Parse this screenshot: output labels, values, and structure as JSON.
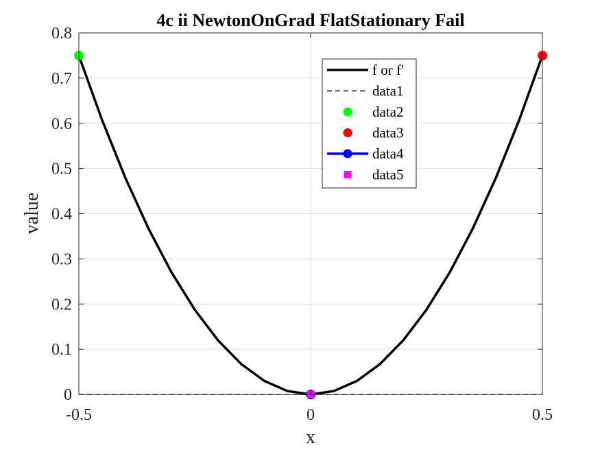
{
  "chart_data": {
    "type": "line",
    "title": "4c ii NewtonOnGrad FlatStationary Fail",
    "xlabel": "x",
    "ylabel": "value",
    "xlim": [
      -0.5,
      0.5
    ],
    "ylim": [
      0,
      0.8
    ],
    "xticks": [
      -0.5,
      0,
      0.5
    ],
    "xtick_labels": [
      "-0.5",
      "0",
      "0.5"
    ],
    "yticks": [
      0,
      0.1,
      0.2,
      0.3,
      0.4,
      0.5,
      0.6,
      0.7,
      0.8
    ],
    "ytick_labels": [
      "0",
      "0.1",
      "0.2",
      "0.3",
      "0.4",
      "0.5",
      "0.6",
      "0.7",
      "0.8"
    ],
    "grid": true,
    "legend_position": "top-center",
    "series": [
      {
        "name": "f or f'",
        "style": "solid-thick",
        "color": "#000000",
        "x": [
          -0.5,
          -0.45,
          -0.4,
          -0.35,
          -0.3,
          -0.25,
          -0.2,
          -0.15,
          -0.1,
          -0.05,
          0,
          0.05,
          0.1,
          0.15,
          0.2,
          0.25,
          0.3,
          0.35,
          0.4,
          0.45,
          0.5
        ],
        "y": [
          0.75,
          0.6075,
          0.48,
          0.3675,
          0.27,
          0.1875,
          0.12,
          0.0675,
          0.03,
          0.0075,
          0,
          0.0075,
          0.03,
          0.0675,
          0.12,
          0.1875,
          0.27,
          0.3675,
          0.48,
          0.6075,
          0.75
        ]
      },
      {
        "name": "data1",
        "style": "dashed",
        "color": "#000000",
        "x": [
          -0.5,
          0.5
        ],
        "y": [
          0,
          0
        ]
      },
      {
        "name": "data2",
        "style": "marker-circle",
        "color": "#00ff00",
        "x": [
          -0.5
        ],
        "y": [
          0.75
        ]
      },
      {
        "name": "data3",
        "style": "marker-circle",
        "color": "#ff0000",
        "x": [
          0.5
        ],
        "y": [
          0.75
        ]
      },
      {
        "name": "data4",
        "style": "line-marker",
        "color": "#0000ff",
        "x": [
          0
        ],
        "y": [
          0
        ]
      },
      {
        "name": "data5",
        "style": "marker-square",
        "color": "#ff00ff",
        "x": [
          0
        ],
        "y": [
          0
        ]
      }
    ]
  }
}
